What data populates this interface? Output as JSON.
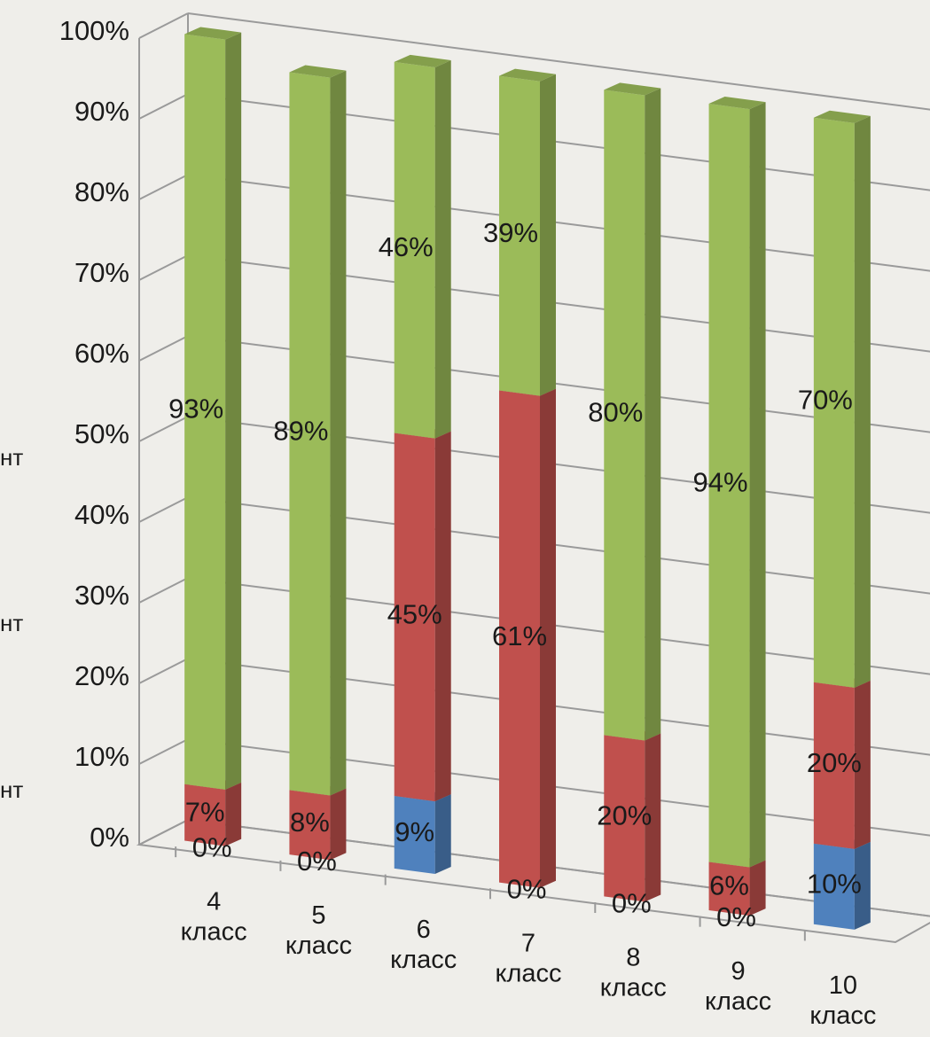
{
  "chart_data": {
    "type": "bar",
    "stacked": true,
    "three_d": true,
    "categories": [
      [
        "4",
        "класс"
      ],
      [
        "5",
        "класс"
      ],
      [
        "6",
        "класс"
      ],
      [
        "7",
        "класс"
      ],
      [
        "8",
        "класс"
      ],
      [
        "9",
        "класс"
      ],
      [
        "10",
        "класс"
      ]
    ],
    "series": [
      {
        "color": "#4f81bd",
        "values": [
          0,
          0,
          9,
          0,
          0,
          0,
          10
        ],
        "labels": [
          "0%",
          "0%",
          "9%",
          "0%",
          "0%",
          "0%",
          "10%"
        ]
      },
      {
        "color": "#c0504d",
        "values": [
          7,
          8,
          45,
          61,
          20,
          6,
          20
        ],
        "labels": [
          "7%",
          "8%",
          "45%",
          "61%",
          "20%",
          "6%",
          "20%"
        ]
      },
      {
        "color": "#9bbb59",
        "values": [
          93,
          89,
          46,
          39,
          80,
          94,
          70
        ],
        "labels": [
          "93%",
          "89%",
          "46%",
          "39%",
          "80%",
          "94%",
          "70%"
        ]
      }
    ],
    "ylim": [
      0,
      100
    ],
    "yticks": [
      "0%",
      "10%",
      "20%",
      "30%",
      "40%",
      "50%",
      "60%",
      "70%",
      "80%",
      "90%",
      "100%"
    ],
    "grid": true,
    "legend_fragment": [
      "нт",
      "нт",
      "нт"
    ]
  }
}
